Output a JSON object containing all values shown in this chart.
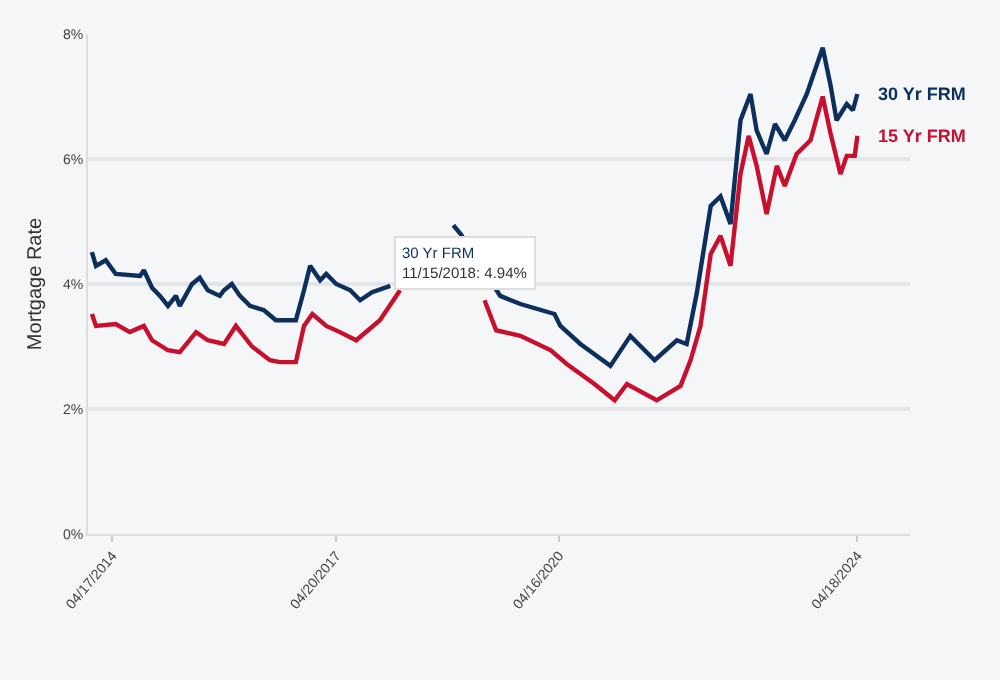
{
  "chart_data": {
    "type": "line",
    "ylabel": "Mortgage Rate",
    "xlim": [
      "2013-12-20",
      "2025-01-01"
    ],
    "xticks": [
      {
        "value": "2014-04-17",
        "label": "04/17/2014"
      },
      {
        "value": "2017-04-20",
        "label": "04/20/2017"
      },
      {
        "value": "2020-04-16",
        "label": "04/16/2020"
      },
      {
        "value": "2024-04-18",
        "label": "04/18/2024"
      }
    ],
    "ylim": [
      0,
      8
    ],
    "yticks": [
      {
        "value": 0,
        "label": "0%"
      },
      {
        "value": 2,
        "label": "2%"
      },
      {
        "value": 4,
        "label": "4%"
      },
      {
        "value": 6,
        "label": "6%"
      },
      {
        "value": 8,
        "label": "8%"
      }
    ],
    "grid": "y",
    "marker": "none",
    "line_style": "solid",
    "series": [
      {
        "name": "30 Yr FRM",
        "color": "#0d2f5e",
        "x": [
          "2014-01-08",
          "2014-01-28",
          "2014-03-17",
          "2014-05-05",
          "2014-09-01",
          "2014-09-20",
          "2014-10-30",
          "2014-12-08",
          "2015-01-16",
          "2015-02-24",
          "2015-03-15",
          "2015-05-14",
          "2015-06-21",
          "2015-07-30",
          "2015-09-27",
          "2015-10-18",
          "2015-11-25",
          "2016-01-04",
          "2016-02-22",
          "2016-05-01",
          "2016-06-28",
          "2016-10-04",
          "2016-11-13",
          "2016-12-13",
          "2017-01-31",
          "2017-03-02",
          "2017-04-20",
          "2017-06-28",
          "2017-08-15",
          "2017-10-13",
          "2018-01-10",
          "2018-02-27",
          "2018-11-15",
          "2018-12-21",
          "2019-07-03",
          "2019-10-10",
          "2020-03-25",
          "2020-04-23",
          "2020-07-30",
          "2020-12-24",
          "2021-04-01",
          "2021-07-29",
          "2021-11-15",
          "2022-01-02",
          "2022-02-20",
          "2022-04-30",
          "2022-06-17",
          "2022-08-05",
          "2022-09-23",
          "2022-11-11",
          "2022-12-11",
          "2023-01-29",
          "2023-03-11",
          "2023-04-28",
          "2023-06-16",
          "2023-08-14",
          "2023-10-31",
          "2023-12-09",
          "2024-01-07",
          "2024-02-26",
          "2024-03-27",
          "2024-04-18"
        ],
        "values": [
          4.51,
          4.29,
          4.38,
          4.16,
          4.13,
          4.22,
          3.94,
          3.81,
          3.65,
          3.81,
          3.65,
          4.0,
          4.1,
          3.9,
          3.81,
          3.9,
          4.0,
          3.81,
          3.65,
          3.58,
          3.42,
          3.42,
          3.9,
          4.29,
          4.06,
          4.16,
          4.0,
          3.9,
          3.74,
          3.87,
          3.97,
          null,
          4.94,
          4.8,
          3.81,
          3.68,
          3.52,
          3.33,
          3.04,
          2.69,
          3.17,
          2.78,
          3.1,
          3.04,
          3.84,
          5.25,
          5.4,
          4.96,
          6.62,
          7.04,
          6.46,
          6.08,
          6.56,
          6.3,
          6.62,
          7.04,
          7.78,
          7.17,
          6.62,
          6.88,
          6.78,
          7.04
        ]
      },
      {
        "name": "15 Yr FRM",
        "color": "#c8102e",
        "x": [
          "2014-01-08",
          "2014-01-28",
          "2014-05-05",
          "2014-07-13",
          "2014-09-20",
          "2014-10-30",
          "2015-01-16",
          "2015-03-15",
          "2015-06-03",
          "2015-07-30",
          "2015-10-18",
          "2015-12-15",
          "2016-03-03",
          "2016-05-30",
          "2016-07-18",
          "2016-10-04",
          "2016-11-13",
          "2016-12-24",
          "2017-03-02",
          "2017-05-08",
          "2017-07-27",
          "2017-11-20",
          "2018-02-27",
          "2018-06-06",
          "2018-10-23",
          "2018-12-21",
          "2019-04-17",
          "2019-06-13",
          "2019-10-10",
          "2020-03-07",
          "2020-05-24",
          "2020-10-07",
          "2021-01-14",
          "2021-03-15",
          "2021-08-08",
          "2021-12-03",
          "2022-01-21",
          "2022-03-11",
          "2022-04-30",
          "2022-06-17",
          "2022-08-05",
          "2022-09-23",
          "2022-11-02",
          "2022-12-11",
          "2023-01-29",
          "2023-03-20",
          "2023-04-28",
          "2023-06-25",
          "2023-09-01",
          "2023-10-31",
          "2023-12-09",
          "2024-01-26",
          "2024-02-26",
          "2024-04-05",
          "2024-04-18"
        ],
        "values": [
          3.52,
          3.33,
          3.36,
          3.23,
          3.33,
          3.1,
          2.94,
          2.91,
          3.23,
          3.1,
          3.04,
          3.33,
          3.0,
          2.78,
          2.75,
          2.75,
          3.33,
          3.52,
          3.33,
          3.23,
          3.1,
          3.42,
          3.9,
          null,
          null,
          null,
          3.74,
          3.26,
          3.17,
          2.94,
          2.72,
          2.4,
          2.14,
          2.4,
          2.14,
          2.37,
          2.78,
          3.33,
          4.48,
          4.77,
          4.29,
          5.76,
          6.37,
          5.89,
          5.12,
          5.89,
          5.57,
          6.08,
          6.3,
          7.0,
          6.4,
          5.76,
          6.05,
          6.05,
          6.37
        ]
      }
    ],
    "annotations": [
      {
        "text": "30 Yr FRM\n11/15/2018: 4.94%",
        "x": "2018-11-15",
        "y": 4.94
      }
    ]
  }
}
